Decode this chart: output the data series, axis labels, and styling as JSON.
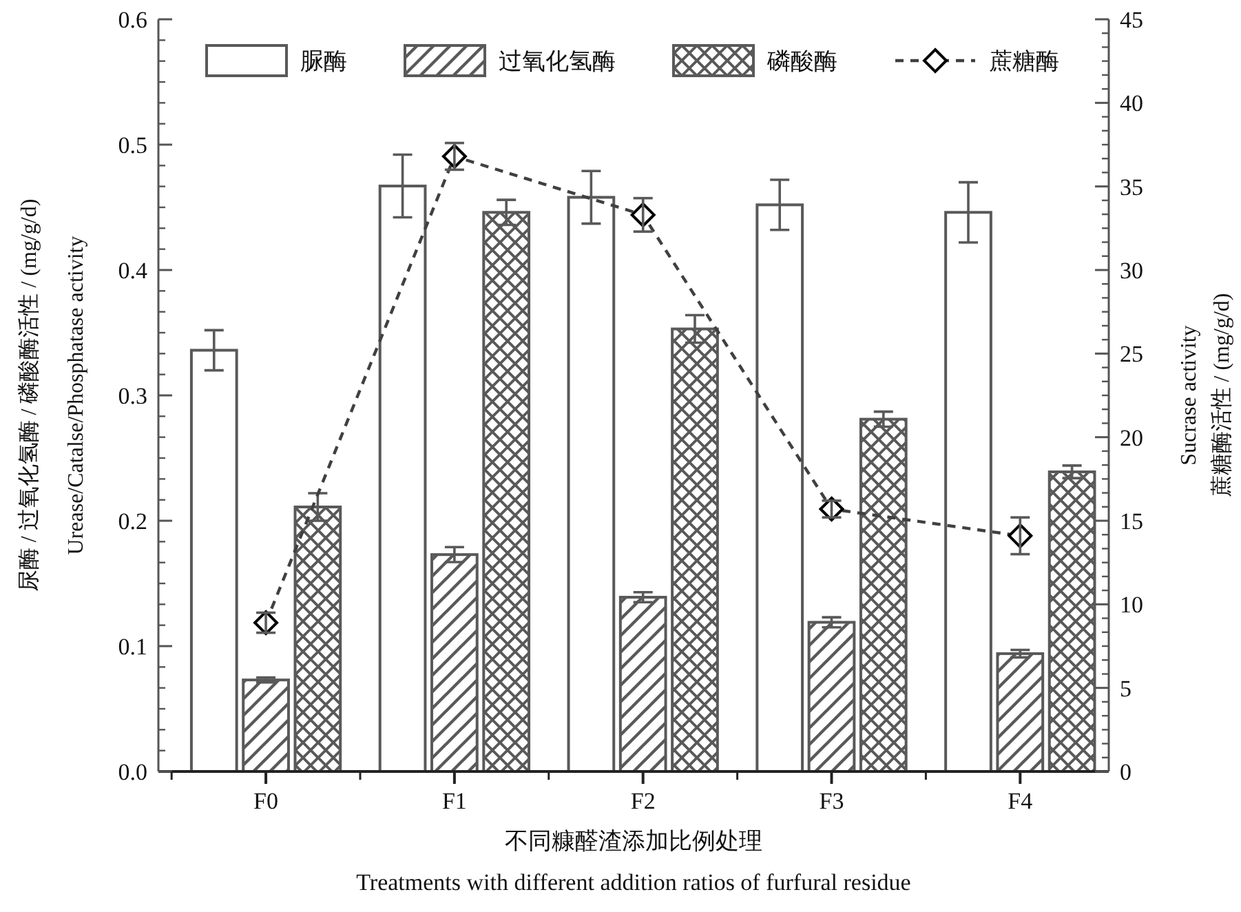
{
  "chart_data": {
    "type": "bar",
    "categories": [
      "F0",
      "F1",
      "F2",
      "F3",
      "F4"
    ],
    "xlabel": "不同糠醛渣添加比例处理\nTreatments with different addition ratios of furfural residue",
    "ylabel": "尿酶 / 过氧化氢酶 / 磷酸酶活性 / (mg/g/d)\nUrease/Catalse/Phosphatase activity",
    "y2label": "Sucrase activity\n蔗糖酶活性 / (mg/g/d)",
    "ylim": [
      0,
      0.6
    ],
    "yticks": [
      {
        "value": 0,
        "label": "0.0"
      },
      0.1,
      0.2,
      0.3,
      0.4,
      0.5,
      0.6
    ],
    "y2lim": [
      0,
      45
    ],
    "y2ticks": [
      0,
      5,
      10,
      15,
      20,
      25,
      30,
      35,
      40,
      45
    ],
    "legend": "top",
    "series": [
      {
        "name": "脲酶",
        "color": "#595959",
        "values": [
          0.336,
          0.467,
          0.458,
          0.452,
          0.446
        ],
        "errors": [
          0.016,
          0.025,
          0.021,
          0.02,
          0.024
        ]
      },
      {
        "name": "过氧化氢酶",
        "color": "#595959",
        "values": [
          0.073,
          0.173,
          0.139,
          0.119,
          0.094
        ],
        "errors": [
          0.002,
          0.006,
          0.004,
          0.004,
          0.003
        ]
      },
      {
        "name": "磷酸酶",
        "color": "#595959",
        "values": [
          0.211,
          0.446,
          0.353,
          0.281,
          0.239
        ],
        "errors": [
          0.011,
          0.01,
          0.011,
          0.006,
          0.005
        ]
      },
      {
        "name": "蔗糖酶",
        "type": "line",
        "axis": "y2",
        "marker": "diamond",
        "line_style": "dashed",
        "color": "#404040",
        "values": [
          8.9,
          36.8,
          33.3,
          15.7,
          14.1
        ],
        "errors": [
          0.6,
          0.8,
          1.0,
          0.5,
          1.1
        ]
      }
    ]
  }
}
